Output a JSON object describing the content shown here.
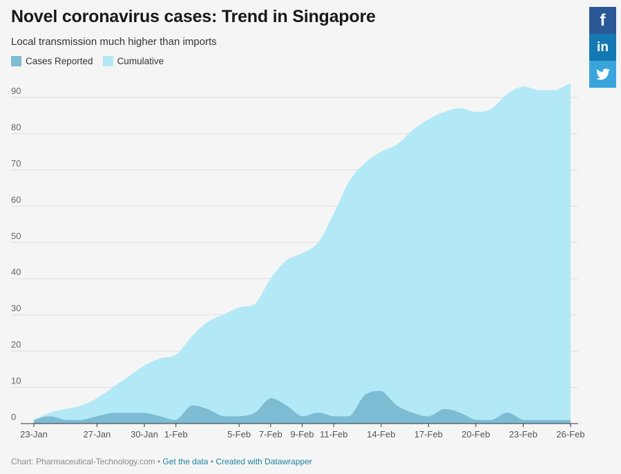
{
  "header": {
    "title": "Novel coronavirus cases: Trend in Singapore",
    "subtitle": "Local transmission much higher than imports"
  },
  "legend": [
    {
      "label": "Cases Reported",
      "color": "#7ebcd3"
    },
    {
      "label": "Cumulative",
      "color": "#b3e9f7"
    }
  ],
  "footer": {
    "source": "Chart: Pharmaceutical-Technology.com",
    "sep1": " • ",
    "data_link": "Get the data",
    "sep2": " • ",
    "credit_link": "Created with Datawrapper"
  },
  "share": {
    "facebook_icon": "facebook-icon",
    "linkedin_icon": "linkedin-icon",
    "twitter_icon": "twitter-icon"
  },
  "chart_data": {
    "type": "area",
    "title": "Novel coronavirus cases: Trend in Singapore",
    "subtitle": "Local transmission much higher than imports",
    "x": [
      "23-Jan",
      "24-Jan",
      "25-Jan",
      "26-Jan",
      "27-Jan",
      "28-Jan",
      "29-Jan",
      "30-Jan",
      "31-Jan",
      "1-Feb",
      "2-Feb",
      "3-Feb",
      "4-Feb",
      "5-Feb",
      "6-Feb",
      "7-Feb",
      "8-Feb",
      "9-Feb",
      "10-Feb",
      "11-Feb",
      "12-Feb",
      "13-Feb",
      "14-Feb",
      "15-Feb",
      "16-Feb",
      "17-Feb",
      "18-Feb",
      "19-Feb",
      "20-Feb",
      "21-Feb",
      "22-Feb",
      "23-Feb",
      "24-Feb",
      "25-Feb",
      "26-Feb"
    ],
    "x_tick_labels": [
      "23-Jan",
      "27-Jan",
      "30-Jan",
      "1-Feb",
      "5-Feb",
      "7-Feb",
      "9-Feb",
      "11-Feb",
      "14-Feb",
      "17-Feb",
      "20-Feb",
      "23-Feb",
      "26-Feb"
    ],
    "series": [
      {
        "name": "Cumulative",
        "color": "#b3e9f7",
        "values": [
          1,
          3,
          4,
          5,
          7,
          10,
          13,
          16,
          18,
          19,
          24,
          28,
          30,
          32,
          33,
          40,
          45,
          47,
          50,
          58,
          67,
          72,
          75,
          77,
          81,
          84,
          86,
          87,
          86,
          87,
          91,
          93,
          92,
          92,
          94
        ]
      },
      {
        "name": "Cases Reported",
        "color": "#7ebcd3",
        "values": [
          1,
          2,
          1,
          1,
          2,
          3,
          3,
          3,
          2,
          1,
          5,
          4,
          2,
          2,
          3,
          7,
          5,
          2,
          3,
          2,
          2,
          8,
          9,
          5,
          3,
          2,
          4,
          3,
          1,
          1,
          3,
          1,
          1,
          1,
          1
        ]
      }
    ],
    "ylim": [
      0,
      95
    ],
    "yticks": [
      0,
      10,
      20,
      30,
      40,
      50,
      60,
      70,
      80,
      90
    ],
    "grid": true,
    "legend_position": "top-left"
  }
}
